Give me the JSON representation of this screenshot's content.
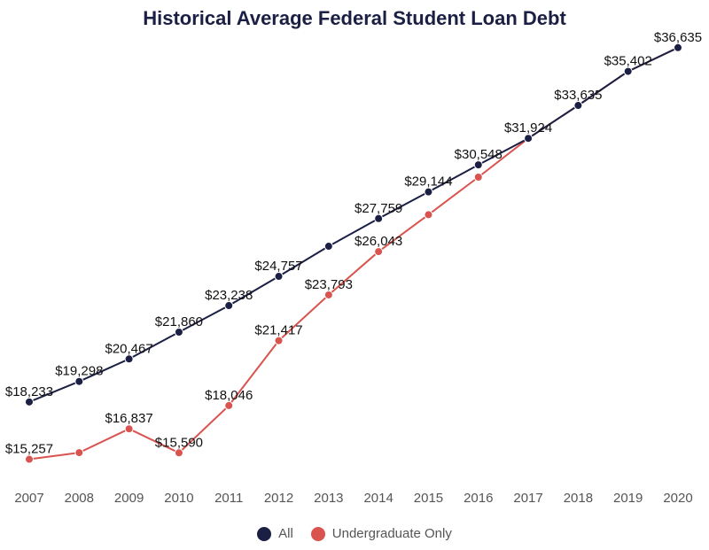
{
  "chart_data": {
    "type": "line",
    "title": "Historical Average Federal Student Loan Debt",
    "x": [
      "2007",
      "2008",
      "2009",
      "2010",
      "2011",
      "2012",
      "2013",
      "2014",
      "2015",
      "2016",
      "2017",
      "2018",
      "2019",
      "2020"
    ],
    "ylim": [
      14500,
      37500
    ],
    "grid": false,
    "legend_position": "bottom-center",
    "series": [
      {
        "name": "All",
        "color": "#1b1f44",
        "values": [
          18233,
          19298,
          20467,
          21860,
          23238,
          24757,
          26320,
          27759,
          29144,
          30548,
          31924,
          33635,
          35402,
          36635
        ],
        "labels": [
          "$18,233",
          "$19,298",
          "$20,467",
          "$21,860",
          "$23,238",
          "$24,757",
          "",
          "$27,759",
          "$29,144",
          "$30,548",
          "$31,924",
          "$33,635",
          "$35,402",
          "$36,635"
        ]
      },
      {
        "name": "Undergraduate Only",
        "color": "#d9534f",
        "values": [
          15257,
          15600,
          16837,
          15590,
          18046,
          21417,
          23793,
          26043,
          27960,
          29910,
          31924,
          33635,
          35402,
          36635
        ],
        "labels": [
          "$15,257",
          "",
          "$16,837",
          "$15,590",
          "$18,046",
          "$21,417",
          "$23,793",
          "$26,043",
          "",
          "",
          "",
          "",
          "",
          ""
        ]
      }
    ]
  }
}
